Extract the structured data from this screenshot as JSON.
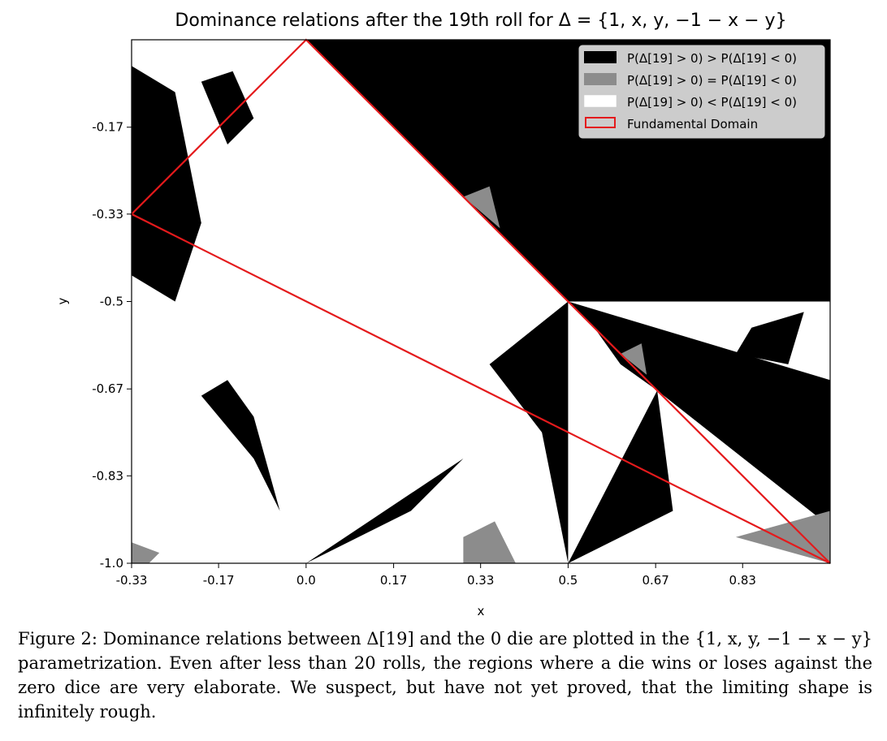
{
  "chart_data": {
    "type": "heatmap",
    "title": "Dominance relations after the 19th roll for Δ = {1, x, y, −1 − x − y}",
    "xlabel": "x",
    "ylabel": "y",
    "xlim": [
      -0.333,
      1.0
    ],
    "ylim": [
      -1.0,
      0.0
    ],
    "x_ticks": [
      -0.333,
      -0.167,
      0.0,
      0.167,
      0.333,
      0.5,
      0.667,
      0.833
    ],
    "x_tick_labels": [
      "-0.33",
      "-0.17",
      "0.0",
      "0.17",
      "0.33",
      "0.5",
      "0.67",
      "0.83"
    ],
    "y_ticks": [
      -0.167,
      -0.333,
      -0.5,
      -0.667,
      -0.833,
      -1.0
    ],
    "y_tick_labels": [
      "-0.17",
      "-0.33",
      "-0.5",
      "-0.67",
      "-0.83",
      "-1.0"
    ],
    "legend_position": "top-right",
    "legend": [
      {
        "label": "P(Δ[19] > 0) > P(Δ[19] < 0)",
        "color": "#000000",
        "kind": "fill"
      },
      {
        "label": "P(Δ[19] > 0) = P(Δ[19] < 0)",
        "color": "#8c8c8c",
        "kind": "fill"
      },
      {
        "label": "P(Δ[19] > 0) < P(Δ[19] < 0)",
        "color": "#ffffff",
        "kind": "fill"
      },
      {
        "label": "Fundamental Domain",
        "color": "#e41a1c",
        "kind": "outline"
      }
    ],
    "fundamental_domain": [
      [
        0.0,
        0.0
      ],
      [
        -0.333,
        -0.333
      ],
      [
        1.0,
        -1.0
      ]
    ],
    "regions": {
      "black": [
        [
          [
            0.0,
            0.0
          ],
          [
            1.0,
            0.0
          ],
          [
            1.0,
            -0.5
          ],
          [
            0.5,
            -0.5
          ]
        ],
        [
          [
            0.5,
            -0.5
          ],
          [
            1.0,
            -0.65
          ],
          [
            1.0,
            -0.93
          ],
          [
            0.67,
            -0.67
          ]
        ],
        [
          [
            -0.333,
            -0.05
          ],
          [
            -0.25,
            -0.1
          ],
          [
            -0.2,
            -0.35
          ],
          [
            -0.25,
            -0.5
          ],
          [
            -0.333,
            -0.45
          ]
        ],
        [
          [
            -0.2,
            -0.08
          ],
          [
            -0.14,
            -0.06
          ],
          [
            -0.1,
            -0.15
          ],
          [
            -0.15,
            -0.2
          ]
        ],
        [
          [
            -0.2,
            -0.68
          ],
          [
            -0.15,
            -0.65
          ],
          [
            -0.1,
            -0.72
          ],
          [
            -0.05,
            -0.9
          ],
          [
            -0.1,
            -0.8
          ]
        ],
        [
          [
            0.35,
            -0.62
          ],
          [
            0.5,
            -0.5
          ],
          [
            0.5,
            -1.0
          ],
          [
            0.45,
            -0.75
          ]
        ],
        [
          [
            0.55,
            -0.55
          ],
          [
            0.67,
            -0.67
          ],
          [
            0.6,
            -0.62
          ]
        ],
        [
          [
            0.0,
            0.0
          ],
          [
            0.25,
            -0.25
          ],
          [
            0.1,
            -0.1
          ]
        ],
        [
          [
            0.0,
            -1.0
          ],
          [
            0.3,
            -0.8
          ],
          [
            0.2,
            -0.9
          ]
        ],
        [
          [
            0.5,
            -1.0
          ],
          [
            0.67,
            -0.67
          ],
          [
            0.7,
            -0.9
          ]
        ],
        [
          [
            0.72,
            -0.35
          ],
          [
            0.8,
            -0.38
          ],
          [
            0.78,
            -0.45
          ],
          [
            0.7,
            -0.45
          ]
        ],
        [
          [
            0.85,
            -0.55
          ],
          [
            0.95,
            -0.52
          ],
          [
            0.92,
            -0.62
          ],
          [
            0.82,
            -0.6
          ]
        ]
      ],
      "gray": [
        [
          [
            0.3,
            -0.3
          ],
          [
            0.35,
            -0.28
          ],
          [
            0.37,
            -0.36
          ]
        ],
        [
          [
            0.6,
            -0.6
          ],
          [
            0.64,
            -0.58
          ],
          [
            0.65,
            -0.64
          ]
        ],
        [
          [
            0.82,
            -0.95
          ],
          [
            1.0,
            -0.9
          ],
          [
            1.0,
            -1.0
          ]
        ],
        [
          [
            0.3,
            -0.95
          ],
          [
            0.36,
            -0.92
          ],
          [
            0.4,
            -1.0
          ],
          [
            0.3,
            -1.0
          ]
        ],
        [
          [
            -0.333,
            -0.96
          ],
          [
            -0.28,
            -0.98
          ],
          [
            -0.3,
            -1.0
          ],
          [
            -0.333,
            -1.0
          ]
        ]
      ]
    }
  },
  "caption": "Figure 2: Dominance relations between Δ[19] and the 0 die are plotted in the {1, x, y, −1 − x − y} parametrization. Even after less than 20 rolls, the regions where a die wins or loses against the zero dice are very elaborate. We suspect, but have not yet proved, that the limiting shape is infinitely rough."
}
